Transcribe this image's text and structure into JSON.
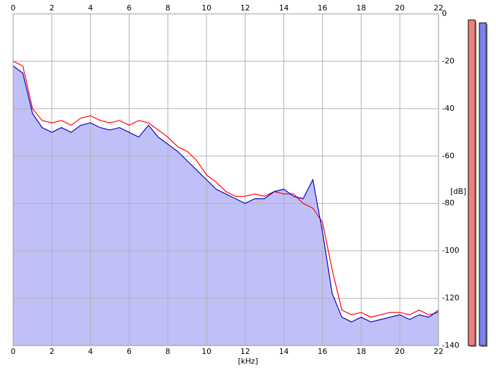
{
  "chart_data": {
    "type": "line",
    "x_label": "[kHz]",
    "y_label": "[dB]",
    "x": [
      0,
      0.5,
      1,
      1.5,
      2,
      2.5,
      3,
      3.5,
      4,
      4.5,
      5,
      5.5,
      6,
      6.5,
      7,
      7.5,
      8,
      8.5,
      9,
      9.5,
      10,
      10.5,
      11,
      11.5,
      12,
      12.5,
      13,
      13.5,
      14,
      14.5,
      15,
      15.5,
      16,
      16.5,
      17,
      17.5,
      18,
      18.5,
      19,
      19.5,
      20,
      20.5,
      21,
      21.5,
      22
    ],
    "series": [
      {
        "color": "#ff0000",
        "values": [
          -20,
          -22,
          -40,
          -45,
          -46,
          -45,
          -47,
          -44,
          -43,
          -45,
          -46,
          -45,
          -47,
          -45,
          -46,
          -49,
          -52,
          -56,
          -58,
          -62,
          -68,
          -71,
          -75,
          -77,
          -77,
          -76,
          -77,
          -75,
          -76,
          -76,
          -80,
          -82,
          -88,
          -108,
          -125,
          -127,
          -126,
          -128,
          -127,
          -126,
          -126,
          -127,
          -125,
          -127,
          -126
        ]
      },
      {
        "color": "#0000cc",
        "fill": "#c0c0f8",
        "values": [
          -22,
          -25,
          -42,
          -48,
          -50,
          -48,
          -50,
          -47,
          -46,
          -48,
          -49,
          -48,
          -50,
          -52,
          -47,
          -52,
          -55,
          -58,
          -62,
          -66,
          -70,
          -74,
          -76,
          -78,
          -80,
          -78,
          -78,
          -75,
          -74,
          -77,
          -78,
          -70,
          -92,
          -118,
          -128,
          -130,
          -128,
          -130,
          -129,
          -128,
          -127,
          -129,
          -127,
          -128,
          -125
        ]
      }
    ],
    "levels": [
      {
        "color": "#f08080",
        "value": -2.6
      },
      {
        "color": "#8080f0",
        "value": -3.8
      }
    ],
    "xlim": [
      0,
      22
    ],
    "xticks": [
      0,
      2,
      4,
      6,
      8,
      10,
      12,
      14,
      16,
      18,
      20,
      22
    ],
    "ylim": [
      -140,
      0
    ],
    "yticks": [
      0,
      -20,
      -40,
      -60,
      -80,
      -100,
      -120,
      -140
    ],
    "grid": true
  }
}
